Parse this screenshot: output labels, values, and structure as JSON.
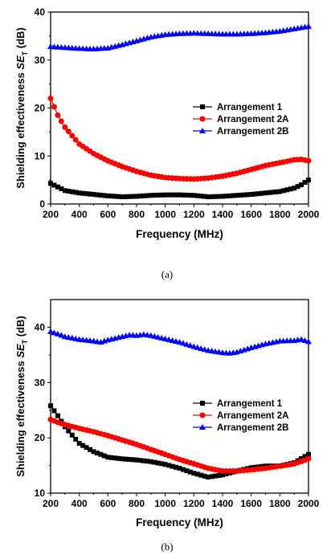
{
  "chart_data": [
    {
      "type": "line",
      "xlabel": "Frequency (MHz)",
      "ylabel": {
        "prefix": "Shielding effectiveness ",
        "var": "SE",
        "sub": "T",
        "suffix": " (dB)"
      },
      "xlim": [
        200,
        2000
      ],
      "ylim": [
        0,
        40
      ],
      "xticks": [
        200,
        400,
        600,
        800,
        1000,
        1200,
        1400,
        1600,
        1800,
        2000
      ],
      "yticks": [
        0,
        10,
        20,
        30,
        40
      ],
      "caption": "(a)",
      "legend_position": "right-middle",
      "series": [
        {
          "name": "Arrangement 1",
          "color": "#000000",
          "marker": "square",
          "x": [
            200,
            300,
            400,
            500,
            600,
            700,
            800,
            900,
            1000,
            1100,
            1200,
            1300,
            1400,
            1500,
            1600,
            1700,
            1800,
            1900,
            1950,
            2000
          ],
          "y": [
            4.3,
            2.8,
            2.3,
            2.0,
            1.7,
            1.5,
            1.6,
            1.8,
            1.9,
            1.9,
            1.8,
            1.5,
            1.6,
            1.8,
            2.0,
            2.3,
            2.6,
            3.3,
            4.0,
            5.0
          ]
        },
        {
          "name": "Arrangement 2A",
          "color": "#ff0000",
          "marker": "circle",
          "x": [
            200,
            250,
            300,
            400,
            500,
            600,
            700,
            800,
            900,
            1000,
            1100,
            1200,
            1300,
            1400,
            1500,
            1600,
            1700,
            1800,
            1900,
            1950,
            2000
          ],
          "y": [
            22.0,
            18.5,
            16.0,
            12.5,
            10.5,
            9.0,
            7.8,
            6.8,
            6.0,
            5.5,
            5.3,
            5.2,
            5.4,
            5.8,
            6.4,
            7.2,
            8.0,
            8.6,
            9.2,
            9.3,
            9.0
          ]
        },
        {
          "name": "Arrangement 2B",
          "color": "#0000ff",
          "marker": "triangle",
          "x": [
            200,
            300,
            400,
            500,
            600,
            700,
            800,
            900,
            1000,
            1100,
            1200,
            1300,
            1400,
            1500,
            1600,
            1700,
            1800,
            1900,
            2000
          ],
          "y": [
            32.8,
            32.6,
            32.4,
            32.3,
            32.5,
            33.2,
            34.0,
            34.8,
            35.3,
            35.5,
            35.6,
            35.5,
            35.4,
            35.4,
            35.5,
            35.7,
            36.0,
            36.5,
            37.0
          ]
        }
      ]
    },
    {
      "type": "line",
      "xlabel": "Frequency (MHz)",
      "ylabel": {
        "prefix": "Shielding effectiveness ",
        "var": "SE",
        "sub": "T",
        "suffix": " (dB)"
      },
      "xlim": [
        200,
        2000
      ],
      "ylim": [
        10,
        45
      ],
      "xticks": [
        200,
        400,
        600,
        800,
        1000,
        1200,
        1400,
        1600,
        1800,
        2000
      ],
      "yticks": [
        10,
        20,
        30,
        40
      ],
      "caption": "(b)",
      "legend_position": "right-middle",
      "series": [
        {
          "name": "Arrangement 1",
          "color": "#000000",
          "marker": "square",
          "x": [
            200,
            250,
            300,
            400,
            500,
            600,
            700,
            800,
            900,
            1000,
            1100,
            1200,
            1300,
            1400,
            1500,
            1600,
            1700,
            1800,
            1900,
            2000
          ],
          "y": [
            25.8,
            24.0,
            22.0,
            19.0,
            17.5,
            16.5,
            16.2,
            16.0,
            15.7,
            15.2,
            14.5,
            13.6,
            12.9,
            13.3,
            14.0,
            14.6,
            14.9,
            14.9,
            15.5,
            17.0
          ]
        },
        {
          "name": "Arrangement 2A",
          "color": "#ff0000",
          "marker": "circle",
          "x": [
            200,
            250,
            300,
            400,
            500,
            600,
            700,
            800,
            900,
            1000,
            1100,
            1200,
            1300,
            1400,
            1500,
            1600,
            1700,
            1800,
            1900,
            2000
          ],
          "y": [
            23.3,
            22.8,
            22.4,
            21.7,
            21.1,
            20.4,
            19.6,
            18.8,
            17.9,
            17.0,
            16.1,
            15.3,
            14.5,
            14.0,
            14.0,
            14.2,
            14.5,
            14.9,
            15.3,
            16.2
          ]
        },
        {
          "name": "Arrangement 2B",
          "color": "#0000ff",
          "marker": "triangle",
          "x": [
            200,
            250,
            300,
            400,
            500,
            550,
            600,
            700,
            750,
            800,
            850,
            900,
            1000,
            1100,
            1200,
            1300,
            1400,
            1450,
            1500,
            1600,
            1700,
            1800,
            1900,
            1950,
            2000
          ],
          "y": [
            39.2,
            38.8,
            38.3,
            37.8,
            37.5,
            37.3,
            37.7,
            38.3,
            38.6,
            38.5,
            38.7,
            38.5,
            37.9,
            37.3,
            36.5,
            35.8,
            35.4,
            35.3,
            35.5,
            36.3,
            37.0,
            37.5,
            37.6,
            37.8,
            37.4
          ]
        }
      ]
    }
  ]
}
